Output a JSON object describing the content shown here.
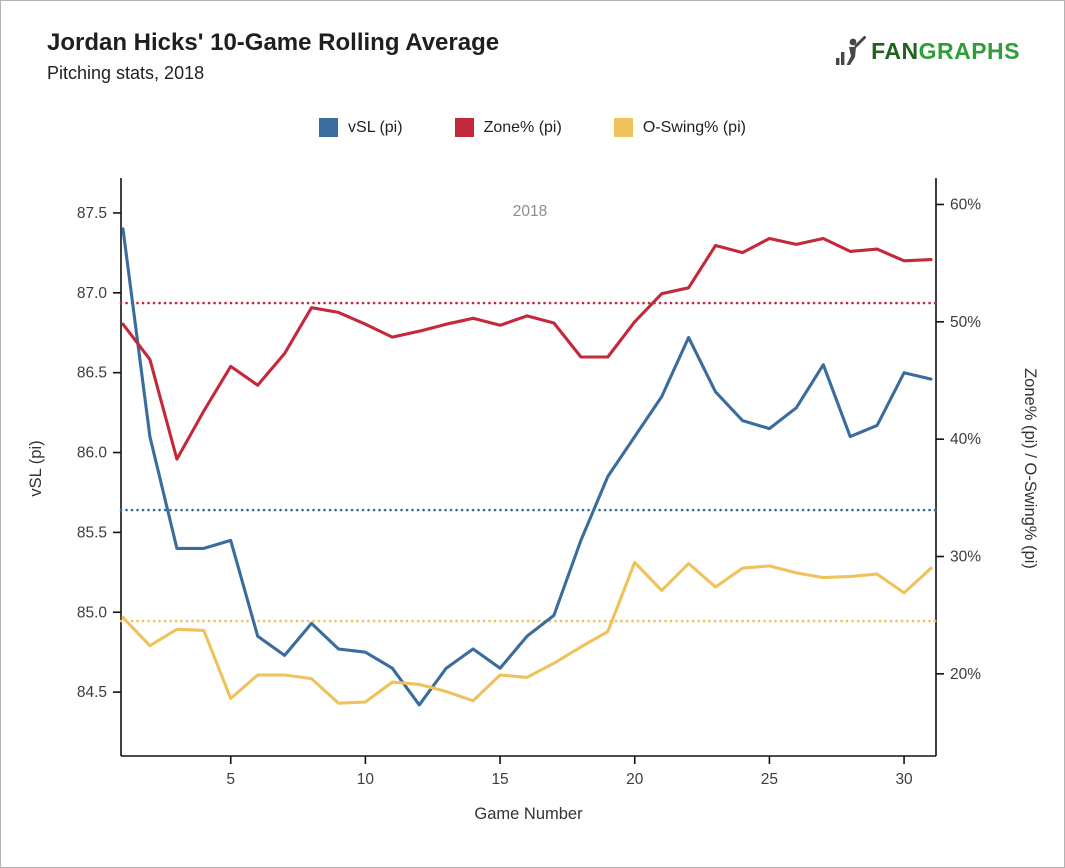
{
  "header": {
    "title": "Jordan Hicks' 10-Game Rolling Average",
    "subtitle": "Pitching stats, 2018",
    "logo": {
      "brand_first": "FAN",
      "brand_rest": "GRAPHS",
      "brand_color": "#2f9e38"
    }
  },
  "legend": [
    {
      "label": "vSL (pi)",
      "color": "#3a6d9e"
    },
    {
      "label": "Zone% (pi)",
      "color": "#c3293b"
    },
    {
      "label": "O-Swing% (pi)",
      "color": "#efc25b"
    }
  ],
  "chart_data": {
    "type": "line",
    "title": "Jordan Hicks' 10-Game Rolling Average",
    "subtitle": "Pitching stats, 2018",
    "annotation": "2018",
    "xlabel": "Game Number",
    "ylabel_left": "vSL (pi)",
    "ylabel_right": "Zone% (pi) / O-Swing% (pi)",
    "grid": false,
    "legend_position": "top",
    "x": [
      1,
      2,
      3,
      4,
      5,
      6,
      7,
      8,
      9,
      10,
      11,
      12,
      13,
      14,
      15,
      16,
      17,
      18,
      19,
      20,
      21,
      22,
      23,
      24,
      25,
      26,
      27,
      28,
      29,
      30,
      31
    ],
    "x_ticks": [
      5,
      10,
      15,
      20,
      25,
      30
    ],
    "left_axis": {
      "label": "vSL (pi)",
      "ticks": [
        84.5,
        85.0,
        85.5,
        86.0,
        86.5,
        87.0,
        87.5
      ],
      "range": [
        84.1,
        87.7
      ]
    },
    "right_axis": {
      "label": "Zone% (pi) / O-Swing% (pi)",
      "ticks": [
        20,
        30,
        40,
        50,
        60
      ],
      "suffix": "%",
      "range": [
        13,
        62
      ]
    },
    "series": [
      {
        "name": "vSL (pi)",
        "axis": "left",
        "color": "#3a6d9e",
        "avg_line": 85.64,
        "values": [
          87.4,
          86.1,
          85.4,
          85.4,
          85.45,
          84.85,
          84.73,
          84.93,
          84.77,
          84.75,
          84.65,
          84.42,
          84.65,
          84.77,
          84.65,
          84.85,
          84.98,
          85.45,
          85.85,
          86.1,
          86.35,
          86.72,
          86.38,
          86.2,
          86.15,
          86.28,
          86.55,
          86.1,
          86.17,
          86.5,
          86.46
        ]
      },
      {
        "name": "Zone% (pi)",
        "axis": "right",
        "color": "#c3293b",
        "avg_line": 51.6,
        "values": [
          49.8,
          46.8,
          38.3,
          42.4,
          46.2,
          44.6,
          47.3,
          51.2,
          50.8,
          49.8,
          48.7,
          49.2,
          49.8,
          50.3,
          49.7,
          50.5,
          49.9,
          47.0,
          47.0,
          50.0,
          52.4,
          52.9,
          56.5,
          55.9,
          57.1,
          56.6,
          57.1,
          56.0,
          56.2,
          55.2,
          55.3
        ]
      },
      {
        "name": "O-Swing% (pi)",
        "axis": "right",
        "color": "#efc25b",
        "avg_line": 24.5,
        "values": [
          24.8,
          22.4,
          23.8,
          23.7,
          17.9,
          19.9,
          19.9,
          19.6,
          17.5,
          17.6,
          19.3,
          19.1,
          18.5,
          17.7,
          19.9,
          19.7,
          20.9,
          22.3,
          23.6,
          29.5,
          27.1,
          29.4,
          27.4,
          29.0,
          29.2,
          28.6,
          28.2,
          28.3,
          28.5,
          26.9,
          29.0
        ]
      }
    ]
  }
}
